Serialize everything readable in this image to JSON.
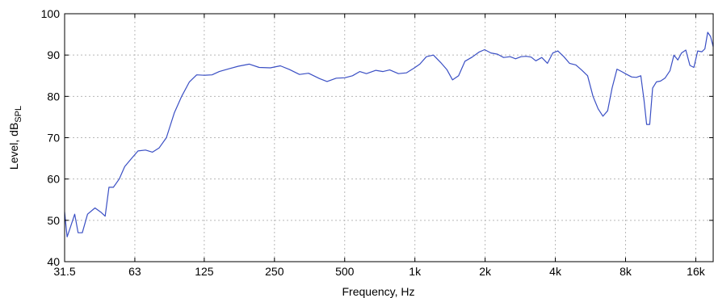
{
  "chart_data": {
    "type": "line",
    "xscale": "log",
    "xlabel": "Frequency, Hz",
    "ylabel_main": "Level, dB",
    "ylabel_sub": "SPL",
    "xlim": [
      31.5,
      19000
    ],
    "ylim": [
      40,
      100
    ],
    "grid": true,
    "x_ticks": [
      {
        "value": 31.5,
        "label": "31.5"
      },
      {
        "value": 63,
        "label": "63"
      },
      {
        "value": 125,
        "label": "125"
      },
      {
        "value": 250,
        "label": "250"
      },
      {
        "value": 500,
        "label": "500"
      },
      {
        "value": 1000,
        "label": "1k"
      },
      {
        "value": 2000,
        "label": "2k"
      },
      {
        "value": 4000,
        "label": "4k"
      },
      {
        "value": 8000,
        "label": "8k"
      },
      {
        "value": 16000,
        "label": "16k"
      }
    ],
    "y_ticks": [
      {
        "value": 40,
        "label": "40"
      },
      {
        "value": 50,
        "label": "50"
      },
      {
        "value": 60,
        "label": "60"
      },
      {
        "value": 70,
        "label": "70"
      },
      {
        "value": 80,
        "label": "80"
      },
      {
        "value": 90,
        "label": "90"
      },
      {
        "value": 100,
        "label": "100"
      }
    ],
    "series": [
      {
        "color": "#3a4fc4",
        "points": [
          [
            31.5,
            52
          ],
          [
            32.3,
            46
          ],
          [
            33.2,
            48
          ],
          [
            34.8,
            51.5
          ],
          [
            36,
            47
          ],
          [
            37.5,
            47
          ],
          [
            39.5,
            51.5
          ],
          [
            42.5,
            53
          ],
          [
            45,
            52
          ],
          [
            47,
            51
          ],
          [
            48.8,
            58
          ],
          [
            51,
            58
          ],
          [
            54,
            60
          ],
          [
            57,
            63
          ],
          [
            61,
            65
          ],
          [
            65,
            66.8
          ],
          [
            70,
            67
          ],
          [
            75,
            66.5
          ],
          [
            80,
            67.5
          ],
          [
            86,
            70
          ],
          [
            93,
            76
          ],
          [
            100,
            80
          ],
          [
            108,
            83.5
          ],
          [
            116,
            85.2
          ],
          [
            125,
            85.1
          ],
          [
            135,
            85.2
          ],
          [
            145,
            86
          ],
          [
            160,
            86.7
          ],
          [
            175,
            87.3
          ],
          [
            195,
            87.8
          ],
          [
            215,
            87
          ],
          [
            240,
            86.9
          ],
          [
            265,
            87.4
          ],
          [
            290,
            86.5
          ],
          [
            320,
            85.3
          ],
          [
            350,
            85.6
          ],
          [
            390,
            84.3
          ],
          [
            420,
            83.6
          ],
          [
            460,
            84.4
          ],
          [
            500,
            84.5
          ],
          [
            540,
            85
          ],
          [
            580,
            86
          ],
          [
            620,
            85.5
          ],
          [
            680,
            86.3
          ],
          [
            730,
            86
          ],
          [
            780,
            86.4
          ],
          [
            850,
            85.5
          ],
          [
            920,
            85.7
          ],
          [
            990,
            86.8
          ],
          [
            1050,
            87.8
          ],
          [
            1120,
            89.6
          ],
          [
            1200,
            90
          ],
          [
            1290,
            88.2
          ],
          [
            1370,
            86.5
          ],
          [
            1450,
            84
          ],
          [
            1540,
            85
          ],
          [
            1640,
            88.5
          ],
          [
            1760,
            89.5
          ],
          [
            1880,
            90.7
          ],
          [
            1990,
            91.3
          ],
          [
            2120,
            90.5
          ],
          [
            2260,
            90.2
          ],
          [
            2400,
            89.4
          ],
          [
            2560,
            89.6
          ],
          [
            2700,
            89.1
          ],
          [
            2850,
            89.6
          ],
          [
            3000,
            89.7
          ],
          [
            3150,
            89.5
          ],
          [
            3300,
            88.6
          ],
          [
            3500,
            89.4
          ],
          [
            3700,
            88
          ],
          [
            3900,
            90.5
          ],
          [
            4100,
            91
          ],
          [
            4350,
            89.6
          ],
          [
            4600,
            88
          ],
          [
            4900,
            87.6
          ],
          [
            5200,
            86.3
          ],
          [
            5500,
            85
          ],
          [
            5800,
            80
          ],
          [
            6100,
            77
          ],
          [
            6400,
            75.2
          ],
          [
            6700,
            76.5
          ],
          [
            7000,
            82
          ],
          [
            7350,
            86.6
          ],
          [
            7700,
            86
          ],
          [
            8100,
            85.3
          ],
          [
            8500,
            84.7
          ],
          [
            8900,
            84.6
          ],
          [
            9300,
            85
          ],
          [
            9600,
            79
          ],
          [
            9850,
            73.2
          ],
          [
            10150,
            73.2
          ],
          [
            10450,
            82
          ],
          [
            10850,
            83.5
          ],
          [
            11300,
            83.7
          ],
          [
            11800,
            84.4
          ],
          [
            12400,
            86.2
          ],
          [
            12900,
            90
          ],
          [
            13400,
            88.8
          ],
          [
            13900,
            90.5
          ],
          [
            14500,
            91.2
          ],
          [
            15100,
            87.5
          ],
          [
            15700,
            87
          ],
          [
            16300,
            91
          ],
          [
            17000,
            90.8
          ],
          [
            17500,
            91.5
          ],
          [
            18000,
            95.5
          ],
          [
            18500,
            94.5
          ],
          [
            19000,
            92
          ]
        ]
      }
    ]
  }
}
